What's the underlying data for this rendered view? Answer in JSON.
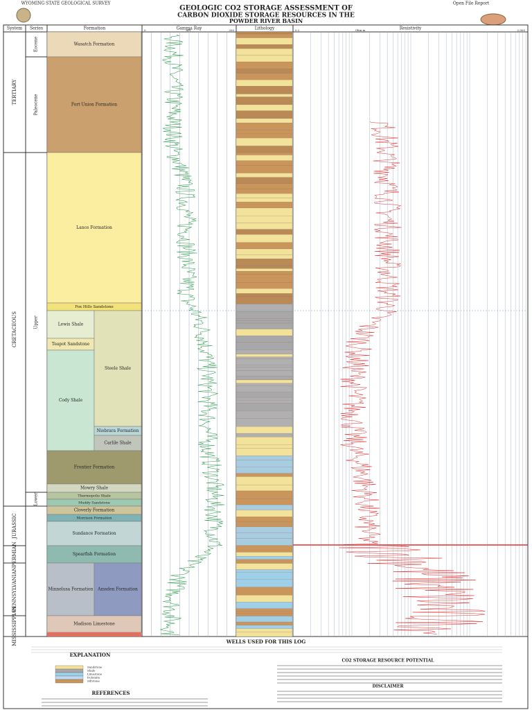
{
  "header": {
    "agency": "WYOMING STATE GEOLOGICAL SURVEY",
    "report": "Open File Report",
    "title": "GEOLOGIC CO2 STORAGE ASSESSMENT OF",
    "title2": "CARBON DIOXIDE STORAGE RESOURCES IN THE",
    "subtitle": "POWDER RIVER BASIN"
  },
  "columns": [
    "System",
    "Series",
    "Formation",
    "Gamma Ray",
    "Lithology",
    "Resistivity"
  ],
  "scales": {
    "gamma_min": "0",
    "gamma_unit": "API",
    "gamma_max": "200",
    "res_min": "0.2",
    "res_unit": "Ohm-m",
    "res_max": "2,000"
  },
  "systems": [
    "TERTIARY",
    "CRETACEOUS",
    "JURASSIC",
    "PERMIAN",
    "PENNSYLVANIAN",
    "MISSISSIPPIAN"
  ],
  "series_labels": [
    "Eocene",
    "Paleocene",
    "Upper",
    "Lower"
  ],
  "formations": [
    "Wasatch Formation",
    "Fort Union Formation",
    "Lance Formation",
    "Fox Hills Sandstone",
    "Lewis Shale",
    "Teapot Sandstone",
    "Cody Shale",
    "Steele Shale",
    "Niobrara Formation",
    "Carlile Shale",
    "Frontier Formation",
    "Mowry Shale",
    "Thermopolis Shale",
    "Muddy Sandstone",
    "Cloverly Formation",
    "Morrison Formation",
    "Sundance Formation",
    "Spearfish Formation",
    "Minnelusa Formation",
    "Amsden Formation",
    "Madison Limestone"
  ],
  "footer": {
    "wells": "WELLS USED FOR THIS LOG",
    "explanation": "EXPLANATION",
    "legend": [
      "Sandstone",
      "Shale",
      "Limestone",
      "Dolomite",
      "Siltstone"
    ],
    "references": "REFERENCES",
    "disclaimer": "DISCLAIMER",
    "storage": "CO2 STORAGE RESOURCE POTENTIAL"
  }
}
